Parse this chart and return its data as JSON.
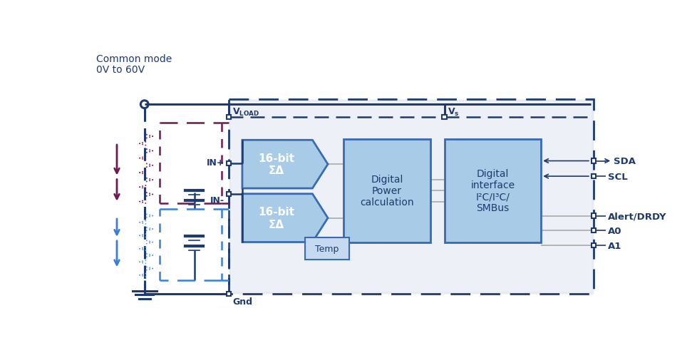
{
  "bg_color": "#ffffff",
  "dark_blue": "#1e3a6e",
  "mid_blue": "#3a6ab0",
  "light_blue_fill": "#a8cce8",
  "lighter_blue_fill": "#c5daf0",
  "purple": "#6e1a50",
  "blue_dash": "#3a7fd4",
  "gray_ic_fill": "#e8ecf2",
  "sigma_delta_1_text": "16-bit\nΣΔ",
  "sigma_delta_2_text": "16-bit\nΣΔ",
  "digital_power_text": "Digital\nPower\ncalculation",
  "digital_interface_text": "Digital\ninterface\nI²C/I³C/\nSMBus",
  "temp_text": "Temp",
  "title_line1": "Common mode",
  "title_line2": "0V to 60V",
  "in_plus": "IN+",
  "in_minus": "IN-",
  "gnd_label": "Gnd",
  "sda_label": "SDA",
  "scl_label": "SCL",
  "alert_label": "Alert/DRDY",
  "a0_label": "A0",
  "a1_label": "A1"
}
